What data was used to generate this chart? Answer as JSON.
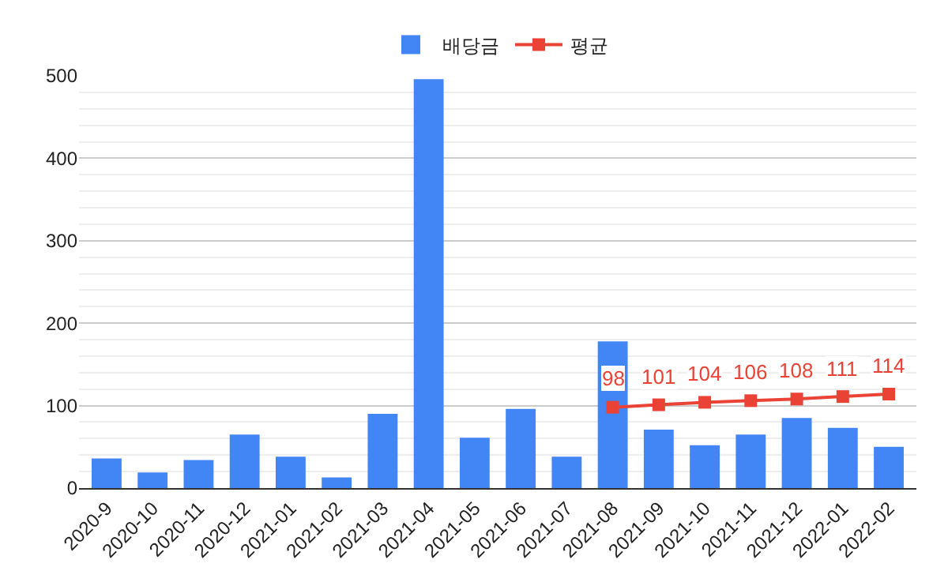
{
  "chart_data": {
    "type": "bar",
    "categories": [
      "2020-9",
      "2020-10",
      "2020-11",
      "2020-12",
      "2021-01",
      "2021-02",
      "2021-03",
      "2021-04",
      "2021-05",
      "2021-06",
      "2021-07",
      "2021-08",
      "2021-09",
      "2021-10",
      "2021-11",
      "2021-12",
      "2022-01",
      "2022-02"
    ],
    "series": [
      {
        "name": "배당금",
        "color": "#4285f4",
        "values": [
          36,
          19,
          34,
          65,
          38,
          13,
          90,
          496,
          61,
          96,
          38,
          178,
          71,
          52,
          65,
          85,
          73,
          50
        ]
      },
      {
        "name": "평균",
        "type": "line",
        "color": "#ea4335",
        "marker": "square",
        "values": [
          null,
          null,
          null,
          null,
          null,
          null,
          null,
          null,
          null,
          null,
          null,
          98,
          101,
          104,
          106,
          108,
          111,
          114
        ],
        "value_labels": [
          null,
          null,
          null,
          null,
          null,
          null,
          null,
          null,
          null,
          null,
          null,
          "98",
          "101",
          "104",
          "106",
          "108",
          "111",
          "114"
        ]
      }
    ],
    "ylim": [
      0,
      500
    ],
    "yticks": [
      0,
      100,
      200,
      300,
      400,
      500
    ],
    "grid": "y",
    "legend": "top"
  }
}
